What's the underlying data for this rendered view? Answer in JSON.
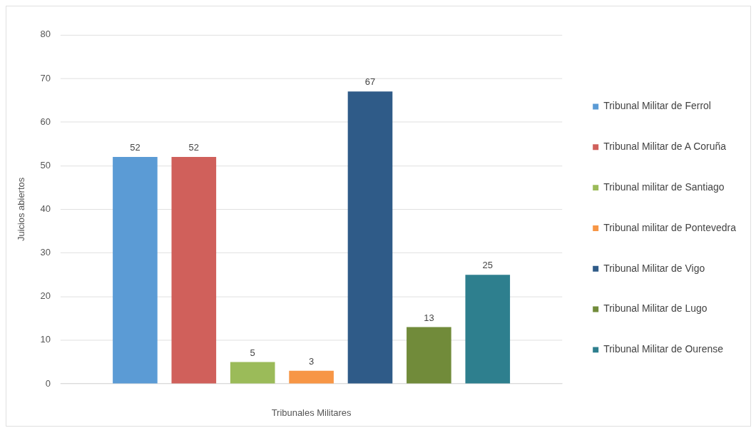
{
  "chart_data": {
    "type": "bar",
    "xlabel": "Tribunales Militares",
    "ylabel": "Juicios abiertos",
    "categories": [
      null
    ],
    "series": [
      {
        "name": "Tribunal Militar de Ferrol",
        "color": "#5b9bd5",
        "values": [
          52
        ]
      },
      {
        "name": "Tribunal Militar de A Coruña",
        "color": "#d0605b",
        "values": [
          52
        ]
      },
      {
        "name": "Tribunal militar de Santiago",
        "color": "#9bbb59",
        "values": [
          5
        ]
      },
      {
        "name": "Tribunal militar de Pontevedra",
        "color": "#f79646",
        "values": [
          3
        ]
      },
      {
        "name": "Tribunal Militar de Vigo",
        "color": "#2f5b88",
        "values": [
          67
        ]
      },
      {
        "name": "Tribunal Militar de Lugo",
        "color": "#718b3a",
        "values": [
          13
        ]
      },
      {
        "name": "Tribunal Militar de Ourense",
        "color": "#2e7f8e",
        "values": [
          25
        ]
      }
    ],
    "ylim": [
      0,
      80
    ],
    "yticks": [
      0,
      10,
      20,
      30,
      40,
      50,
      60,
      70,
      80
    ],
    "grid": "y",
    "legend": "right",
    "data_labels": true
  }
}
